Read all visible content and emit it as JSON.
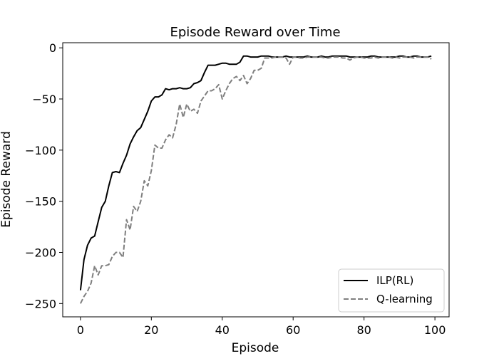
{
  "chart_data": {
    "type": "line",
    "title": "Episode Reward over Time",
    "xlabel": "Episode",
    "ylabel": "Episode Reward",
    "xlim": [
      -5,
      104
    ],
    "ylim": [
      -263,
      5
    ],
    "xticks": [
      0,
      20,
      40,
      60,
      80,
      100
    ],
    "yticks": [
      0,
      -50,
      -100,
      -150,
      -200,
      -250
    ],
    "xtick_labels": [
      "0",
      "20",
      "40",
      "60",
      "80",
      "100"
    ],
    "ytick_labels": [
      "0",
      "−50",
      "−100",
      "−150",
      "−200",
      "−250"
    ],
    "grid": false,
    "legend": {
      "position": "bottom-right"
    },
    "series": [
      {
        "name": "ILP(RL)",
        "color": "#000000",
        "style": "solid",
        "x": [
          0,
          1,
          2,
          3,
          4,
          5,
          6,
          7,
          8,
          9,
          10,
          11,
          12,
          13,
          14,
          15,
          16,
          17,
          18,
          19,
          20,
          21,
          22,
          23,
          24,
          25,
          26,
          27,
          28,
          29,
          30,
          31,
          32,
          33,
          34,
          35,
          36,
          37,
          38,
          39,
          40,
          41,
          42,
          43,
          44,
          45,
          46,
          47,
          48,
          49,
          50,
          51,
          52,
          53,
          54,
          55,
          56,
          57,
          58,
          59,
          60,
          61,
          62,
          63,
          64,
          65,
          66,
          67,
          68,
          69,
          70,
          71,
          72,
          73,
          74,
          75,
          76,
          77,
          78,
          79,
          80,
          81,
          82,
          83,
          84,
          85,
          86,
          87,
          88,
          89,
          90,
          91,
          92,
          93,
          94,
          95,
          96,
          97,
          98,
          99
        ],
        "y": [
          -237,
          -207,
          -193,
          -186,
          -184,
          -170,
          -156,
          -150,
          -135,
          -122,
          -121,
          -122,
          -113,
          -105,
          -94,
          -87,
          -81,
          -78,
          -70,
          -62,
          -52,
          -48,
          -48,
          -46,
          -40,
          -41,
          -40,
          -40,
          -39,
          -40,
          -40,
          -39,
          -35,
          -34,
          -32,
          -24,
          -17,
          -17,
          -17,
          -16,
          -15,
          -15,
          -16,
          -16,
          -16,
          -14,
          -8,
          -8,
          -9,
          -9,
          -9,
          -8,
          -8,
          -8,
          -9,
          -9,
          -9,
          -9,
          -8,
          -9,
          -9,
          -9,
          -9,
          -9,
          -8,
          -9,
          -9,
          -9,
          -8,
          -9,
          -9,
          -8,
          -8,
          -8,
          -8,
          -8,
          -9,
          -9,
          -9,
          -9,
          -9,
          -9,
          -8,
          -8,
          -9,
          -9,
          -9,
          -9,
          -9,
          -9,
          -8,
          -8,
          -9,
          -9,
          -8,
          -8,
          -9,
          -9,
          -9,
          -8
        ]
      },
      {
        "name": "Q-learning",
        "color": "#7f7f7f",
        "style": "dashed",
        "x": [
          0,
          1,
          2,
          3,
          4,
          5,
          6,
          7,
          8,
          9,
          10,
          11,
          12,
          13,
          14,
          15,
          16,
          17,
          18,
          19,
          20,
          21,
          22,
          23,
          24,
          25,
          26,
          27,
          28,
          29,
          30,
          31,
          32,
          33,
          34,
          35,
          36,
          37,
          38,
          39,
          40,
          41,
          42,
          43,
          44,
          45,
          46,
          47,
          48,
          49,
          50,
          51,
          52,
          53,
          54,
          55,
          56,
          57,
          58,
          59,
          60,
          61,
          62,
          63,
          64,
          65,
          66,
          67,
          68,
          69,
          70,
          71,
          72,
          73,
          74,
          75,
          76,
          77,
          78,
          79,
          80,
          81,
          82,
          83,
          84,
          85,
          86,
          87,
          88,
          89,
          90,
          91,
          92,
          93,
          94,
          95,
          96,
          97,
          98,
          99
        ],
        "y": [
          -250,
          -243,
          -238,
          -230,
          -213,
          -222,
          -213,
          -213,
          -212,
          -204,
          -200,
          -200,
          -205,
          -168,
          -178,
          -155,
          -160,
          -150,
          -130,
          -135,
          -120,
          -95,
          -98,
          -98,
          -90,
          -85,
          -88,
          -75,
          -55,
          -68,
          -55,
          -62,
          -60,
          -64,
          -52,
          -47,
          -42,
          -42,
          -40,
          -36,
          -50,
          -42,
          -35,
          -30,
          -28,
          -32,
          -27,
          -35,
          -30,
          -22,
          -22,
          -20,
          -10,
          -10,
          -10,
          -9,
          -9,
          -9,
          -10,
          -16,
          -9,
          -9,
          -10,
          -10,
          -9,
          -9,
          -9,
          -9,
          -9,
          -10,
          -10,
          -9,
          -9,
          -9,
          -10,
          -10,
          -12,
          -10,
          -9,
          -9,
          -10,
          -10,
          -10,
          -9,
          -10,
          -9,
          -9,
          -9,
          -10,
          -9,
          -10,
          -9,
          -9,
          -9,
          -10,
          -9,
          -9,
          -9,
          -9,
          -11
        ]
      }
    ]
  }
}
